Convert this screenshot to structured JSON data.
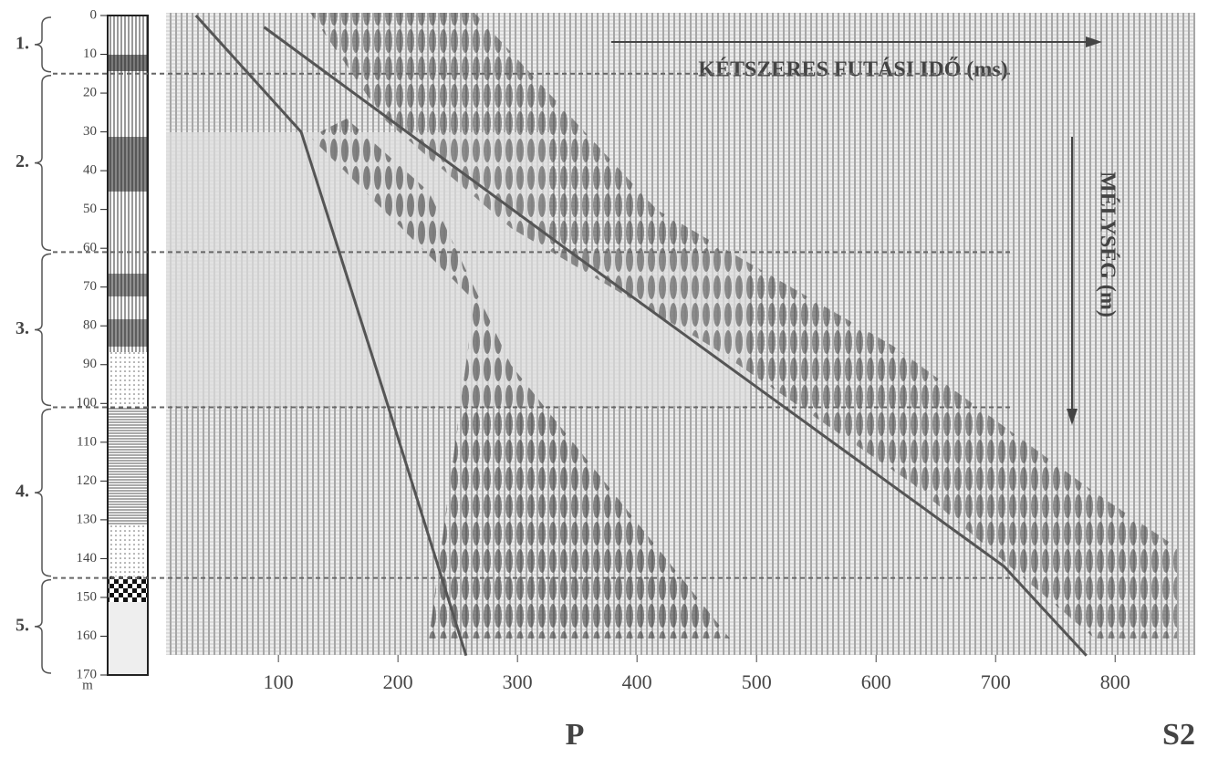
{
  "chart_data": {
    "type": "line",
    "x_label": "KÉTSZERES FUTÁSI IDŐ  (ms)",
    "y_label": "MÉLYSÉG (m)",
    "y_unit": "m",
    "xlim": [
      6,
      867
    ],
    "xticks": [
      100,
      200,
      300,
      400,
      500,
      600,
      700,
      800
    ],
    "ylim": [
      0,
      170
    ],
    "yticks": [
      0,
      10,
      20,
      30,
      40,
      50,
      60,
      70,
      80,
      90,
      100,
      110,
      120,
      130,
      140,
      150,
      160,
      170
    ],
    "zones": [
      {
        "label": "1.",
        "from": 0,
        "to": 15
      },
      {
        "label": "2.",
        "from": 15,
        "to": 61
      },
      {
        "label": "3.",
        "from": 61,
        "to": 101
      },
      {
        "label": "4.",
        "from": 101,
        "to": 145
      },
      {
        "label": "5.",
        "from": 145,
        "to": 170
      }
    ],
    "series": [
      {
        "name": "P",
        "color": "#555555",
        "x": [
          31,
          119,
          188,
          257
        ],
        "values": [
          0,
          30,
          97,
          165
        ]
      },
      {
        "name": "S2",
        "color": "#555555",
        "x": [
          88,
          340,
          707,
          776
        ],
        "values": [
          3,
          60,
          142,
          165
        ]
      }
    ]
  }
}
